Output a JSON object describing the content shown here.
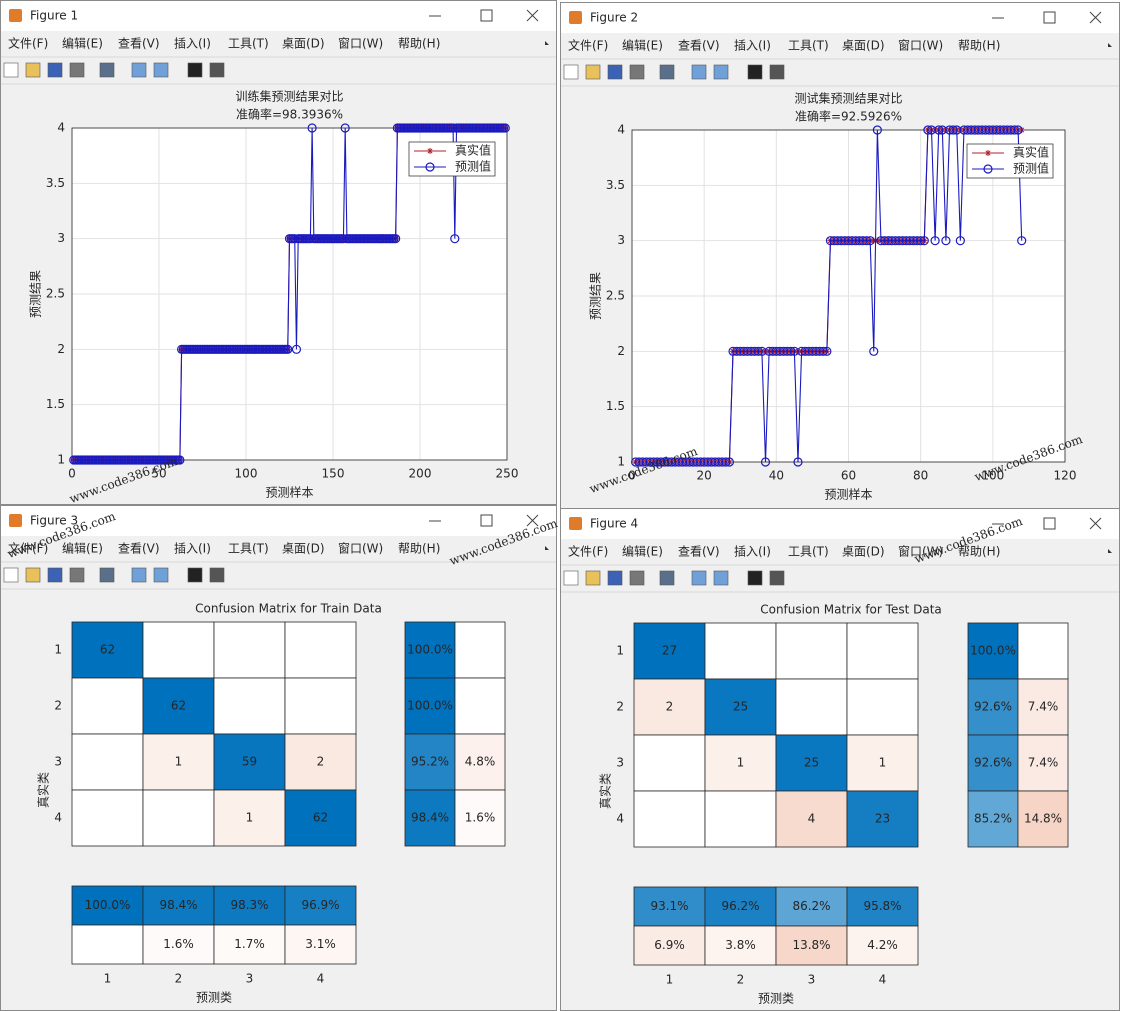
{
  "windows": [
    {
      "title": "Figure 1"
    },
    {
      "title": "Figure 2"
    },
    {
      "title": "Figure 3"
    },
    {
      "title": "Figure 4"
    }
  ],
  "menu": [
    "文件(F)",
    "编辑(E)",
    "查看(V)",
    "插入(I)",
    "工具(T)",
    "桌面(D)",
    "窗口(W)",
    "帮助(H)"
  ],
  "watermark": "www.code386.com",
  "chart_data": [
    {
      "type": "line",
      "title": "训练集预测结果对比",
      "subtitle": "准确率=98.3936%",
      "xlabel": "预测样本",
      "ylabel": "预测结果",
      "xlim": [
        0,
        250
      ],
      "xticks": [
        0,
        50,
        100,
        150,
        200,
        250
      ],
      "ylim": [
        1,
        4
      ],
      "yticks": [
        1,
        1.5,
        2,
        2.5,
        3,
        3.5,
        4
      ],
      "grid": true,
      "legend": "upper right",
      "series": [
        {
          "name": "真实值",
          "color": "#b0202a",
          "marker": "star",
          "values": [
            1,
            1,
            1,
            1,
            1,
            1,
            1,
            1,
            1,
            1,
            1,
            1,
            1,
            1,
            1,
            1,
            1,
            1,
            1,
            1,
            1,
            1,
            1,
            1,
            1,
            1,
            1,
            1,
            1,
            1,
            1,
            1,
            1,
            1,
            1,
            1,
            1,
            1,
            1,
            1,
            1,
            1,
            1,
            1,
            1,
            1,
            1,
            1,
            1,
            1,
            1,
            1,
            1,
            1,
            1,
            1,
            1,
            1,
            1,
            1,
            1,
            1,
            2,
            2,
            2,
            2,
            2,
            2,
            2,
            2,
            2,
            2,
            2,
            2,
            2,
            2,
            2,
            2,
            2,
            2,
            2,
            2,
            2,
            2,
            2,
            2,
            2,
            2,
            2,
            2,
            2,
            2,
            2,
            2,
            2,
            2,
            2,
            2,
            2,
            2,
            2,
            2,
            2,
            2,
            2,
            2,
            2,
            2,
            2,
            2,
            2,
            2,
            2,
            2,
            2,
            2,
            2,
            2,
            2,
            2,
            2,
            2,
            2,
            2,
            3,
            3,
            3,
            3,
            3,
            3,
            3,
            3,
            3,
            3,
            3,
            3,
            3,
            3,
            3,
            3,
            3,
            3,
            3,
            3,
            3,
            3,
            3,
            3,
            3,
            3,
            3,
            3,
            3,
            3,
            3,
            3,
            3,
            3,
            3,
            3,
            3,
            3,
            3,
            3,
            3,
            3,
            3,
            3,
            3,
            3,
            3,
            3,
            3,
            3,
            3,
            3,
            3,
            3,
            3,
            3,
            3,
            3,
            3,
            3,
            3,
            3,
            4,
            4,
            4,
            4,
            4,
            4,
            4,
            4,
            4,
            4,
            4,
            4,
            4,
            4,
            4,
            4,
            4,
            4,
            4,
            4,
            4,
            4,
            4,
            4,
            4,
            4,
            4,
            4,
            4,
            4,
            4,
            4,
            4,
            4,
            4,
            4,
            4,
            4,
            4,
            4,
            4,
            4,
            4,
            4,
            4,
            4,
            4,
            4,
            4,
            4,
            4,
            4,
            4,
            4,
            4,
            4,
            4,
            4,
            4,
            4,
            4,
            4,
            4
          ]
        },
        {
          "name": "预测值",
          "color": "#1a1ac0",
          "marker": "circle",
          "values": [
            1,
            1,
            1,
            1,
            1,
            1,
            1,
            1,
            1,
            1,
            1,
            1,
            1,
            1,
            1,
            1,
            1,
            1,
            1,
            1,
            1,
            1,
            1,
            1,
            1,
            1,
            1,
            1,
            1,
            1,
            1,
            1,
            1,
            1,
            1,
            1,
            1,
            1,
            1,
            1,
            1,
            1,
            1,
            1,
            1,
            1,
            1,
            1,
            1,
            1,
            1,
            1,
            1,
            1,
            1,
            1,
            1,
            1,
            1,
            1,
            1,
            1,
            2,
            2,
            2,
            2,
            2,
            2,
            2,
            2,
            2,
            2,
            2,
            2,
            2,
            2,
            2,
            2,
            2,
            2,
            2,
            2,
            2,
            2,
            2,
            2,
            2,
            2,
            2,
            2,
            2,
            2,
            2,
            2,
            2,
            2,
            2,
            2,
            2,
            2,
            2,
            2,
            2,
            2,
            2,
            2,
            2,
            2,
            2,
            2,
            2,
            2,
            2,
            2,
            2,
            2,
            2,
            2,
            2,
            2,
            2,
            2,
            2,
            2,
            3,
            3,
            3,
            3,
            2,
            3,
            3,
            3,
            3,
            3,
            3,
            3,
            3,
            4,
            3,
            3,
            3,
            3,
            3,
            3,
            3,
            3,
            3,
            3,
            3,
            3,
            3,
            3,
            3,
            3,
            3,
            3,
            4,
            3,
            3,
            3,
            3,
            3,
            3,
            3,
            3,
            3,
            3,
            3,
            3,
            3,
            3,
            3,
            3,
            3,
            3,
            3,
            3,
            3,
            3,
            3,
            3,
            3,
            3,
            3,
            3,
            3,
            4,
            4,
            4,
            4,
            4,
            4,
            4,
            4,
            4,
            4,
            4,
            4,
            4,
            4,
            4,
            4,
            4,
            4,
            4,
            4,
            4,
            4,
            4,
            4,
            4,
            4,
            4,
            4,
            4,
            4,
            4,
            4,
            4,
            3,
            4,
            4,
            4,
            4,
            4,
            4,
            4,
            4,
            4,
            4,
            4,
            4,
            4,
            4,
            4,
            4,
            4,
            4,
            4,
            4,
            4,
            4,
            4,
            4,
            4,
            4,
            4,
            4,
            4
          ]
        }
      ]
    },
    {
      "type": "line",
      "title": "测试集预测结果对比",
      "subtitle": "准确率=92.5926%",
      "xlabel": "预测样本",
      "ylabel": "预测结果",
      "xlim": [
        0,
        120
      ],
      "xticks": [
        0,
        20,
        40,
        60,
        80,
        100,
        120
      ],
      "ylim": [
        1,
        4
      ],
      "yticks": [
        1,
        1.5,
        2,
        2.5,
        3,
        3.5,
        4
      ],
      "grid": true,
      "legend": "upper right",
      "series": [
        {
          "name": "真实值",
          "color": "#b0202a",
          "marker": "star",
          "values": [
            1,
            1,
            1,
            1,
            1,
            1,
            1,
            1,
            1,
            1,
            1,
            1,
            1,
            1,
            1,
            1,
            1,
            1,
            1,
            1,
            1,
            1,
            1,
            1,
            1,
            1,
            1,
            2,
            2,
            2,
            2,
            2,
            2,
            2,
            2,
            2,
            2,
            2,
            2,
            2,
            2,
            2,
            2,
            2,
            2,
            2,
            2,
            2,
            2,
            2,
            2,
            2,
            2,
            2,
            3,
            3,
            3,
            3,
            3,
            3,
            3,
            3,
            3,
            3,
            3,
            3,
            3,
            3,
            3,
            3,
            3,
            3,
            3,
            3,
            3,
            3,
            3,
            3,
            3,
            3,
            3,
            4,
            4,
            4,
            4,
            4,
            4,
            4,
            4,
            4,
            4,
            4,
            4,
            4,
            4,
            4,
            4,
            4,
            4,
            4,
            4,
            4,
            4,
            4,
            4,
            4,
            4,
            4
          ]
        },
        {
          "name": "预测值",
          "color": "#1a1ac0",
          "marker": "circle",
          "values": [
            1,
            1,
            1,
            1,
            1,
            1,
            1,
            1,
            1,
            1,
            1,
            1,
            1,
            1,
            1,
            1,
            1,
            1,
            1,
            1,
            1,
            1,
            1,
            1,
            1,
            1,
            1,
            2,
            2,
            2,
            2,
            2,
            2,
            2,
            2,
            2,
            1,
            2,
            2,
            2,
            2,
            2,
            2,
            2,
            2,
            1,
            2,
            2,
            2,
            2,
            2,
            2,
            2,
            2,
            3,
            3,
            3,
            3,
            3,
            3,
            3,
            3,
            3,
            3,
            3,
            3,
            2,
            4,
            3,
            3,
            3,
            3,
            3,
            3,
            3,
            3,
            3,
            3,
            3,
            3,
            3,
            4,
            4,
            3,
            4,
            4,
            3,
            4,
            4,
            4,
            3,
            4,
            4,
            4,
            4,
            4,
            4,
            4,
            4,
            4,
            4,
            4,
            4,
            4,
            4,
            4,
            4,
            3
          ]
        }
      ]
    },
    {
      "type": "confusion",
      "title": "Confusion Matrix for Train Data",
      "xlabel": "预测类",
      "ylabel": "真实类",
      "classes": [
        "1",
        "2",
        "3",
        "4"
      ],
      "diag_color": "#0072bd",
      "offdiag_color": "#d95319",
      "values": [
        [
          62,
          null,
          null,
          null
        ],
        [
          null,
          62,
          null,
          null
        ],
        [
          null,
          1,
          59,
          2
        ],
        [
          null,
          null,
          1,
          62
        ]
      ],
      "row_summary": {
        "values": [
          [
            100,
            null
          ],
          [
            100,
            null
          ],
          [
            95.2,
            4.8
          ],
          [
            98.4,
            1.6
          ]
        ],
        "value_labels": [
          [
            "100.0%",
            null
          ],
          [
            "100.0%",
            null
          ],
          [
            "95.2%",
            "4.8%"
          ],
          [
            "98.4%",
            "1.6%"
          ]
        ]
      },
      "column_summary": {
        "values": [
          [
            100,
            98.4,
            98.3,
            96.9
          ],
          [
            null,
            1.6,
            1.7,
            3.1
          ]
        ],
        "value_labels": [
          [
            "100.0%",
            "98.4%",
            "98.3%",
            "96.9%"
          ],
          [
            null,
            "1.6%",
            "1.7%",
            "3.1%"
          ]
        ]
      }
    },
    {
      "type": "confusion",
      "title": "Confusion Matrix for Test Data",
      "xlabel": "预测类",
      "ylabel": "真实类",
      "classes": [
        "1",
        "2",
        "3",
        "4"
      ],
      "diag_color": "#0072bd",
      "offdiag_color": "#d95319",
      "values": [
        [
          27,
          null,
          null,
          null
        ],
        [
          2,
          25,
          null,
          null
        ],
        [
          null,
          1,
          25,
          1
        ],
        [
          null,
          null,
          4,
          23
        ]
      ],
      "row_summary": {
        "values": [
          [
            100,
            null
          ],
          [
            92.6,
            7.4
          ],
          [
            92.6,
            7.4
          ],
          [
            85.2,
            14.8
          ]
        ],
        "value_labels": [
          [
            "100.0%",
            null
          ],
          [
            "92.6%",
            "7.4%"
          ],
          [
            "92.6%",
            "7.4%"
          ],
          [
            "85.2%",
            "14.8%"
          ]
        ]
      },
      "column_summary": {
        "values": [
          [
            93.1,
            96.2,
            86.2,
            95.8
          ],
          [
            6.9,
            3.8,
            13.8,
            4.2
          ]
        ],
        "value_labels": [
          [
            "93.1%",
            "96.2%",
            "86.2%",
            "95.8%"
          ],
          [
            "6.9%",
            "3.8%",
            "13.8%",
            "4.2%"
          ]
        ]
      }
    }
  ]
}
